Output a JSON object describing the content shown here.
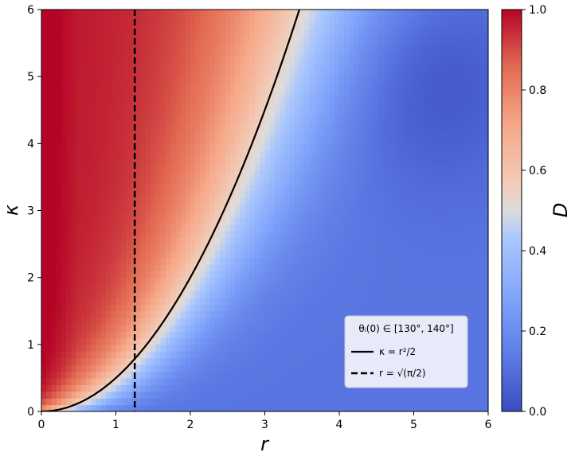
{
  "chart_data": {
    "type": "heatmap",
    "title": "",
    "xlabel": "r",
    "ylabel": "κ",
    "xlim": [
      0,
      6
    ],
    "ylim": [
      0,
      6
    ],
    "x_ticks": [
      "0",
      "1",
      "2",
      "3",
      "4",
      "5",
      "6"
    ],
    "y_ticks": [
      "0",
      "1",
      "2",
      "3",
      "4",
      "5",
      "6"
    ],
    "colorbar": {
      "label": "D",
      "range": [
        0,
        1
      ],
      "ticks": [
        "0.0",
        "0.2",
        "0.4",
        "0.6",
        "0.8",
        "1.0"
      ],
      "colormap": "coolwarm",
      "colors": [
        "#3b4cc0",
        "#6788ee",
        "#9abbff",
        "#c9d7f0",
        "#edd1c2",
        "#f7a889",
        "#e26952",
        "#b40426"
      ]
    },
    "series": [
      {
        "name": "κ = r²/2",
        "style": "solid",
        "color": "#000000",
        "function": "r^2/2"
      },
      {
        "name": "r = √(π/2)",
        "style": "dashed",
        "color": "#000000",
        "x_value": 1.2533
      }
    ],
    "legend": {
      "placement": "lower-right",
      "title": "θᵢ(0) ∈ [130°, 140°]",
      "entries": [
        "κ = r²/2",
        "r = √(π/2)"
      ]
    },
    "d_profile": {
      "description_points_r": [
        0,
        0.5,
        1.0,
        1.5,
        2.0,
        2.5,
        3.0,
        3.5,
        4.0,
        4.5,
        5.0,
        5.5,
        6.0
      ],
      "note_d_at_boundary_kappa_eq_r2_over_2": 0.5
    }
  }
}
